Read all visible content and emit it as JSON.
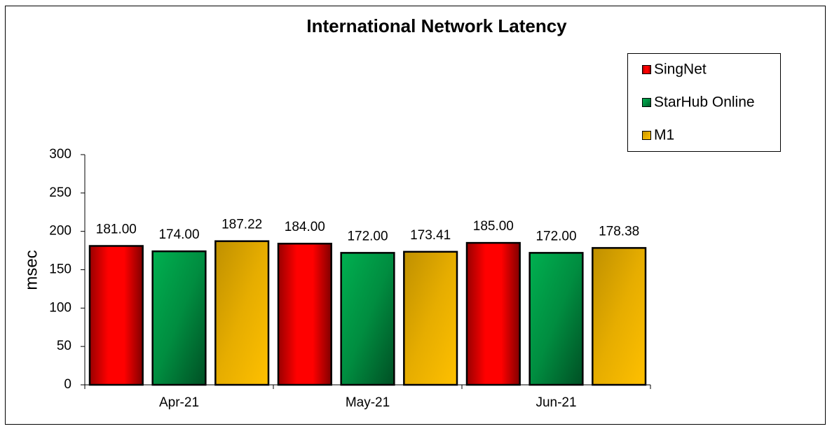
{
  "chart_data": {
    "type": "bar",
    "title": "International Network Latency",
    "y_label": "msec",
    "categories": [
      "Apr-21",
      "May-21",
      "Jun-21"
    ],
    "series": [
      {
        "name": "SingNet",
        "color": "#ff0000",
        "values": [
          181,
          184,
          185
        ],
        "value_labels": [
          "181.00",
          "184.00",
          "185.00"
        ]
      },
      {
        "name": "StarHub Online",
        "color": "#00b050",
        "values": [
          174,
          172,
          172
        ],
        "value_labels": [
          "174.00",
          "172.00",
          "172.00"
        ]
      },
      {
        "name": "M1",
        "color": "#ffc000",
        "values": [
          187.22,
          173.41,
          178.38
        ],
        "value_labels": [
          "187.22",
          "173.41",
          "178.38"
        ]
      }
    ],
    "ylim": [
      0,
      300
    ],
    "yticks": [
      0,
      50,
      100,
      150,
      200,
      250,
      300
    ],
    "grid": false,
    "legend": "upper right"
  }
}
